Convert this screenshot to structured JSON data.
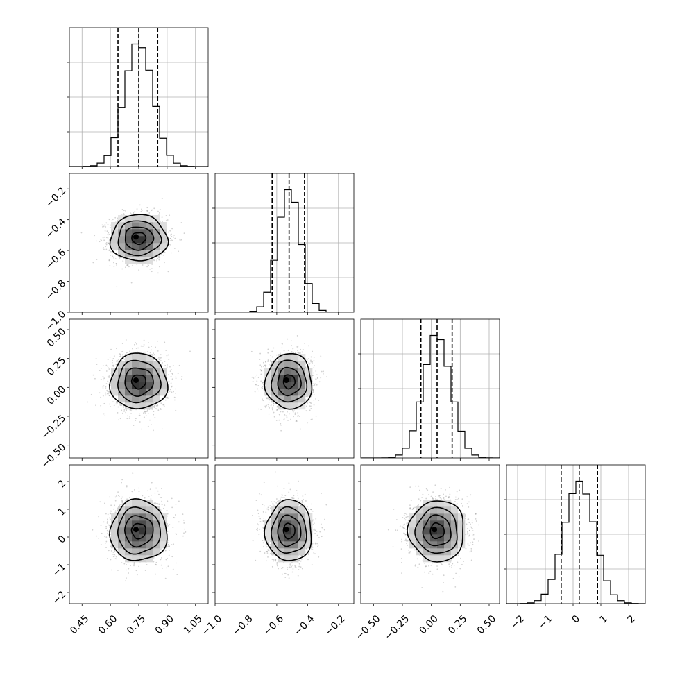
{
  "chart_data": {
    "type": "corner",
    "parameters": [
      {
        "mean": 0.75,
        "std": 0.075,
        "range": [
          0.383,
          1.117
        ],
        "quantiles": [
          0.64,
          0.75,
          0.85
        ],
        "ticks": [
          0.45,
          0.6,
          0.75,
          0.9,
          1.05
        ],
        "tick_labels": [
          "0.45",
          "0.60",
          "0.75",
          "0.90",
          "1.05"
        ]
      },
      {
        "mean": -0.52,
        "std": 0.075,
        "range": [
          -1.0,
          -0.1
        ],
        "quantiles": [
          -0.63,
          -0.52,
          -0.42
        ],
        "ticks": [
          -1.0,
          -0.8,
          -0.6,
          -0.4,
          -0.2
        ],
        "tick_labels": [
          "−1.0",
          "−0.8",
          "−0.6",
          "−0.4",
          "−0.2"
        ]
      },
      {
        "mean": 0.05,
        "std": 0.12,
        "range": [
          -0.61,
          0.59
        ],
        "quantiles": [
          -0.09,
          0.05,
          0.18
        ],
        "ticks": [
          -0.5,
          -0.25,
          0.0,
          0.25,
          0.5
        ],
        "tick_labels": [
          "−0.50",
          "−0.25",
          "0.00",
          "0.25",
          "0.50"
        ]
      },
      {
        "mean": 0.22,
        "std": 0.55,
        "range": [
          -2.4,
          2.6
        ],
        "quantiles": [
          -0.43,
          0.22,
          0.88
        ],
        "ticks": [
          -2,
          -1,
          0,
          1,
          2
        ],
        "tick_labels": [
          "−2",
          "−1",
          "0",
          "1",
          "2"
        ]
      }
    ],
    "histogram_bins": 20,
    "contour_levels": [
      "0.5σ",
      "1σ",
      "1.5σ",
      "2σ"
    ],
    "grid": true,
    "colors": {
      "line": "#000000",
      "grid": "#b0b0b0",
      "points": "#7a7a7a"
    }
  }
}
